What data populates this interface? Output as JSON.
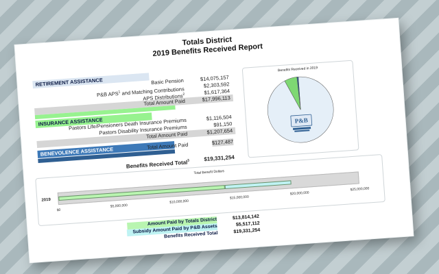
{
  "title_line1": "Totals District",
  "title_line2": "2019 Benefits Received Report",
  "retirement": {
    "header": "RETIREMENT ASSISTANCE",
    "rows": [
      {
        "label": "Basic Pension",
        "value": "$14,075,157"
      },
      {
        "label": "P&B APS",
        "sup": "1",
        "label_rest": " and Matching Contributions",
        "value": "$2,303,592"
      },
      {
        "label": "APS Distributions",
        "sup": "2",
        "value": "$1,617,364"
      }
    ],
    "total_label": "Total Amount Paid",
    "total_value": "$17,996,113"
  },
  "insurance": {
    "header": "INSURANCE ASSISTANCE",
    "rows": [
      {
        "label": "Pastors Life/Pensioners Death Insurance Premiums",
        "value": "$1,116,504"
      },
      {
        "label": "Pastors Disability Insurance Premiums",
        "value": "$91,150"
      }
    ],
    "total_label": "Total Amount Paid",
    "total_value": "$1,207,654"
  },
  "benevolence": {
    "header": "BENEVOLENCE ASSISTANCE",
    "total_label": "Total Amount Paid",
    "total_value": "$127,487"
  },
  "benefits_total": {
    "label": "Benefits Received Total",
    "sup": "3",
    "value": "$19,331,254"
  },
  "pie": {
    "title": "Benefits Received in 2019",
    "logo_text": "P&B"
  },
  "bar": {
    "title": "Total Benefit Dollars",
    "year": "2019",
    "ticks": [
      "$0",
      "$5,000,000",
      "$10,000,000",
      "$15,000,000",
      "$20,000,000",
      "$25,000,000"
    ]
  },
  "summary": [
    {
      "label": "Amount Paid by Totals District",
      "value": "$13,814,142"
    },
    {
      "label": "Subsidy Amount Paid by P&B Assets",
      "value": "$5,517,112"
    },
    {
      "label": "Benefits Received Total",
      "value": "$19,331,254"
    }
  ],
  "chart_data": [
    {
      "type": "pie",
      "title": "Benefits Received in 2019",
      "categories": [
        "Retirement Assistance",
        "Insurance Assistance",
        "Benevolence Assistance"
      ],
      "values": [
        17996113,
        1207654,
        127487
      ]
    },
    {
      "type": "bar",
      "title": "Total Benefit Dollars",
      "categories": [
        "2019"
      ],
      "series": [
        {
          "name": "Amount Paid by Totals District",
          "values": [
            13814142
          ]
        },
        {
          "name": "Subsidy Amount Paid by P&B Assets",
          "values": [
            5517112
          ]
        }
      ],
      "xlim": [
        0,
        25000000
      ]
    }
  ],
  "colors": {
    "retirement_header": "#dbe6f2",
    "insurance_header": "#97f28f",
    "benevolence_header": "#3d79b8",
    "district_bar": "#b9f5b0",
    "subsidy_bar": "#bff3f3",
    "pie_main": "#e5eff8",
    "pie_slice": "#7ed873"
  }
}
